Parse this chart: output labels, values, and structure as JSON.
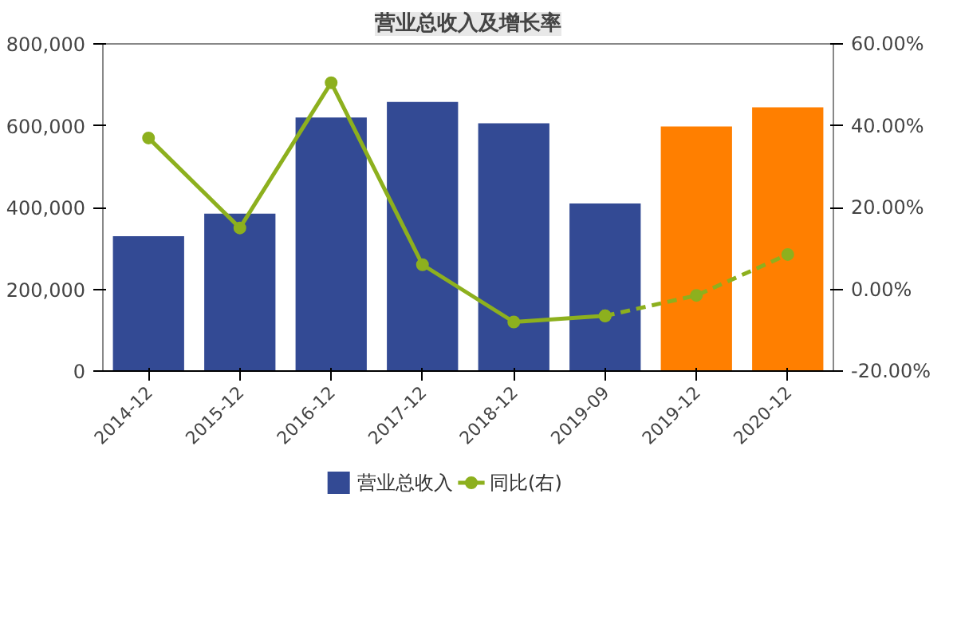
{
  "chart_data": {
    "type": "bar",
    "title": "营业总收入及增长率",
    "categories": [
      "2014-12",
      "2015-12",
      "2016-12",
      "2017-12",
      "2018-12",
      "2019-09",
      "2019-12",
      "2020-12"
    ],
    "series": [
      {
        "name": "营业总收入",
        "colors": [
          "#334a94",
          "#334a94",
          "#334a94",
          "#334a94",
          "#334a94",
          "#334a94",
          "#ff7f00",
          "#ff7f00"
        ],
        "values": [
          330000,
          385000,
          620000,
          658000,
          606000,
          410000,
          598000,
          645000
        ]
      },
      {
        "name": "同比(右)",
        "type": "line",
        "axis": "y2",
        "color": "#8db01e",
        "marker": "circle",
        "line_style": "solid",
        "values": [
          37,
          15,
          50.5,
          6,
          -8,
          -6.5,
          null,
          null
        ]
      },
      {
        "type": "line",
        "axis": "y2",
        "color": "#8db01e",
        "marker": "circle",
        "line_style": "dashed",
        "values": [
          null,
          null,
          null,
          null,
          null,
          -6.5,
          -1.5,
          8.5
        ]
      }
    ],
    "ylim": [
      0,
      800000
    ],
    "yticks": [
      {
        "value": 0,
        "label": "0"
      },
      {
        "value": 200000,
        "label": "200,000"
      },
      {
        "value": 400000,
        "label": "400,000"
      },
      {
        "value": 600000,
        "label": "600,000"
      },
      {
        "value": 800000,
        "label": "800,000"
      }
    ],
    "y2lim": [
      -20,
      60
    ],
    "y2ticks": [
      {
        "value": -20,
        "label": "-20.00%"
      },
      {
        "value": 0,
        "label": "0.00%"
      },
      {
        "value": 20,
        "label": "20.00%"
      },
      {
        "value": 40,
        "label": "40.00%"
      },
      {
        "value": 60,
        "label": "60.00%"
      }
    ],
    "grid": false,
    "legend": "bottom"
  }
}
